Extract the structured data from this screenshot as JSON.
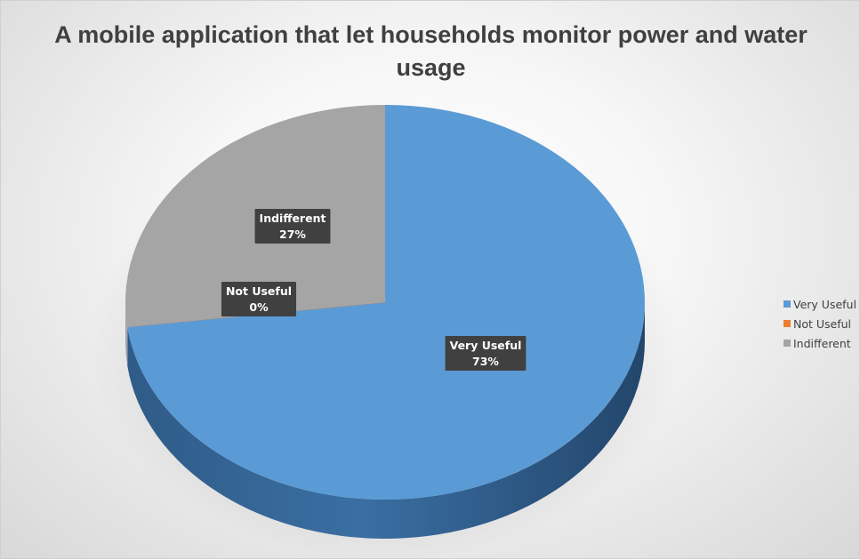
{
  "chart_data": {
    "type": "pie",
    "title": "A mobile application that let households monitor power and water usage",
    "categories": [
      "Very Useful",
      "Not Useful",
      "Indifferent"
    ],
    "values": [
      73,
      0,
      27
    ],
    "value_labels": [
      "73%",
      "0%",
      "27%"
    ],
    "colors": [
      "#5b9bd5",
      "#ed7d31",
      "#a5a5a5"
    ],
    "style": "3d",
    "legend_position": "right"
  }
}
